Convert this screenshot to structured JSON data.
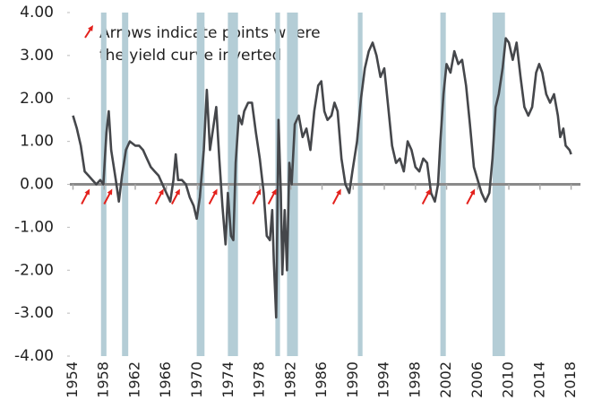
{
  "chart_data": {
    "type": "line",
    "annotation": [
      "Arrows indicate points where",
      "the yield curve inverted"
    ],
    "x": [
      1954.0,
      1954.5,
      1955.0,
      1955.5,
      1956.0,
      1956.5,
      1957.0,
      1957.5,
      1957.9,
      1958.3,
      1958.6,
      1958.9,
      1959.5,
      1959.9,
      1960.3,
      1960.8,
      1961.3,
      1962.0,
      1962.5,
      1963.0,
      1963.5,
      1964.0,
      1964.5,
      1965.0,
      1965.5,
      1966.0,
      1966.5,
      1966.9,
      1967.2,
      1967.5,
      1968.0,
      1968.5,
      1969.0,
      1969.5,
      1969.9,
      1970.3,
      1970.8,
      1971.2,
      1971.6,
      1972.0,
      1972.4,
      1972.8,
      1973.2,
      1973.6,
      1973.9,
      1974.3,
      1974.6,
      1974.9,
      1975.3,
      1975.7,
      1976.0,
      1976.5,
      1977.0,
      1977.5,
      1978.0,
      1978.5,
      1978.9,
      1979.3,
      1979.6,
      1979.8,
      1980.1,
      1980.4,
      1980.7,
      1980.9,
      1981.2,
      1981.5,
      1981.8,
      1982.1,
      1982.5,
      1983.0,
      1983.5,
      1984.0,
      1984.5,
      1985.0,
      1985.5,
      1985.9,
      1986.3,
      1986.7,
      1987.2,
      1987.6,
      1988.0,
      1988.5,
      1989.0,
      1989.5,
      1989.9,
      1990.5,
      1991.0,
      1991.5,
      1992.0,
      1992.5,
      1993.0,
      1993.5,
      1994.0,
      1994.5,
      1995.0,
      1995.5,
      1996.0,
      1996.5,
      1997.0,
      1997.5,
      1998.0,
      1998.5,
      1999.0,
      1999.5,
      2000.0,
      2000.5,
      2000.9,
      2001.2,
      2001.6,
      2002.0,
      2002.5,
      2003.0,
      2003.5,
      2004.0,
      2004.5,
      2005.0,
      2005.5,
      2006.0,
      2006.5,
      2007.0,
      2007.5,
      2007.9,
      2008.3,
      2008.7,
      2009.2,
      2009.6,
      2010.0,
      2010.5,
      2011.0,
      2011.5,
      2012.0,
      2012.5,
      2013.0,
      2013.5,
      2013.9,
      2014.3,
      2014.8,
      2015.3,
      2015.8,
      2016.3,
      2016.6,
      2017.0,
      2017.3,
      2017.8,
      2018.0
    ],
    "values": [
      1.6,
      1.3,
      0.9,
      0.3,
      0.2,
      0.1,
      0.0,
      0.1,
      0.0,
      1.2,
      1.7,
      0.8,
      0.1,
      -0.4,
      0.2,
      0.8,
      1.0,
      0.9,
      0.9,
      0.8,
      0.6,
      0.4,
      0.3,
      0.2,
      0.0,
      -0.2,
      -0.4,
      0.1,
      0.7,
      0.1,
      0.1,
      0.0,
      -0.3,
      -0.5,
      -0.8,
      -0.3,
      0.8,
      2.2,
      0.8,
      1.3,
      1.8,
      0.6,
      -0.5,
      -1.4,
      -0.2,
      -1.2,
      -1.3,
      0.5,
      1.6,
      1.4,
      1.7,
      1.9,
      1.9,
      1.2,
      0.6,
      -0.2,
      -1.2,
      -1.3,
      -0.6,
      -1.8,
      -3.1,
      1.5,
      -0.2,
      -2.1,
      -0.6,
      -2.0,
      0.5,
      0.0,
      1.4,
      1.6,
      1.1,
      1.3,
      0.8,
      1.7,
      2.3,
      2.4,
      1.7,
      1.5,
      1.6,
      1.9,
      1.7,
      0.6,
      0.0,
      -0.2,
      0.3,
      1.0,
      2.0,
      2.7,
      3.1,
      3.3,
      3.0,
      2.5,
      2.7,
      1.8,
      0.9,
      0.5,
      0.6,
      0.3,
      1.0,
      0.8,
      0.4,
      0.3,
      0.6,
      0.5,
      -0.2,
      -0.4,
      0.0,
      1.0,
      2.1,
      2.8,
      2.6,
      3.1,
      2.8,
      2.9,
      2.3,
      1.4,
      0.4,
      0.1,
      -0.2,
      -0.4,
      -0.2,
      0.6,
      1.8,
      2.1,
      2.7,
      3.4,
      3.3,
      2.9,
      3.3,
      2.5,
      1.8,
      1.6,
      1.8,
      2.6,
      2.8,
      2.6,
      2.1,
      1.9,
      2.1,
      1.6,
      1.1,
      1.3,
      0.9,
      0.8,
      0.7
    ],
    "color": "#45474b",
    "recessions": [
      [
        1957.6,
        1958.3
      ],
      [
        1960.3,
        1961.1
      ],
      [
        1969.9,
        1970.9
      ],
      [
        1973.9,
        1975.2
      ],
      [
        1980.0,
        1980.6
      ],
      [
        1981.5,
        1982.9
      ],
      [
        1990.6,
        1991.2
      ],
      [
        2001.2,
        2001.9
      ],
      [
        2007.9,
        2009.5
      ]
    ],
    "recession_color": "#b4cdd6",
    "inversions": [
      1955.8,
      1958.7,
      1965.3,
      1967.4,
      1972.2,
      1977.8,
      1979.8,
      1988.1,
      1999.6,
      2005.3
    ],
    "arrow_color": "#e3211c",
    "xlim": [
      1953.6,
      2019.2
    ],
    "xticks": [
      1954,
      1958,
      1962,
      1966,
      1970,
      1974,
      1978,
      1982,
      1986,
      1990,
      1994,
      1998,
      2002,
      2006,
      2010,
      2014,
      2018
    ],
    "ylim": [
      -4,
      4
    ],
    "yticks": [
      {
        "value": -4,
        "label": "-4.00"
      },
      {
        "value": -3,
        "label": "-3.00"
      },
      {
        "value": -2,
        "label": "-2.00"
      },
      {
        "value": -1,
        "label": "-1.00"
      },
      {
        "value": 0,
        "label": "0.00"
      },
      {
        "value": 1,
        "label": "1.00"
      },
      {
        "value": 2,
        "label": "2.00"
      },
      {
        "value": 3,
        "label": "3.00"
      },
      {
        "value": 4,
        "label": "4.00"
      }
    ]
  }
}
